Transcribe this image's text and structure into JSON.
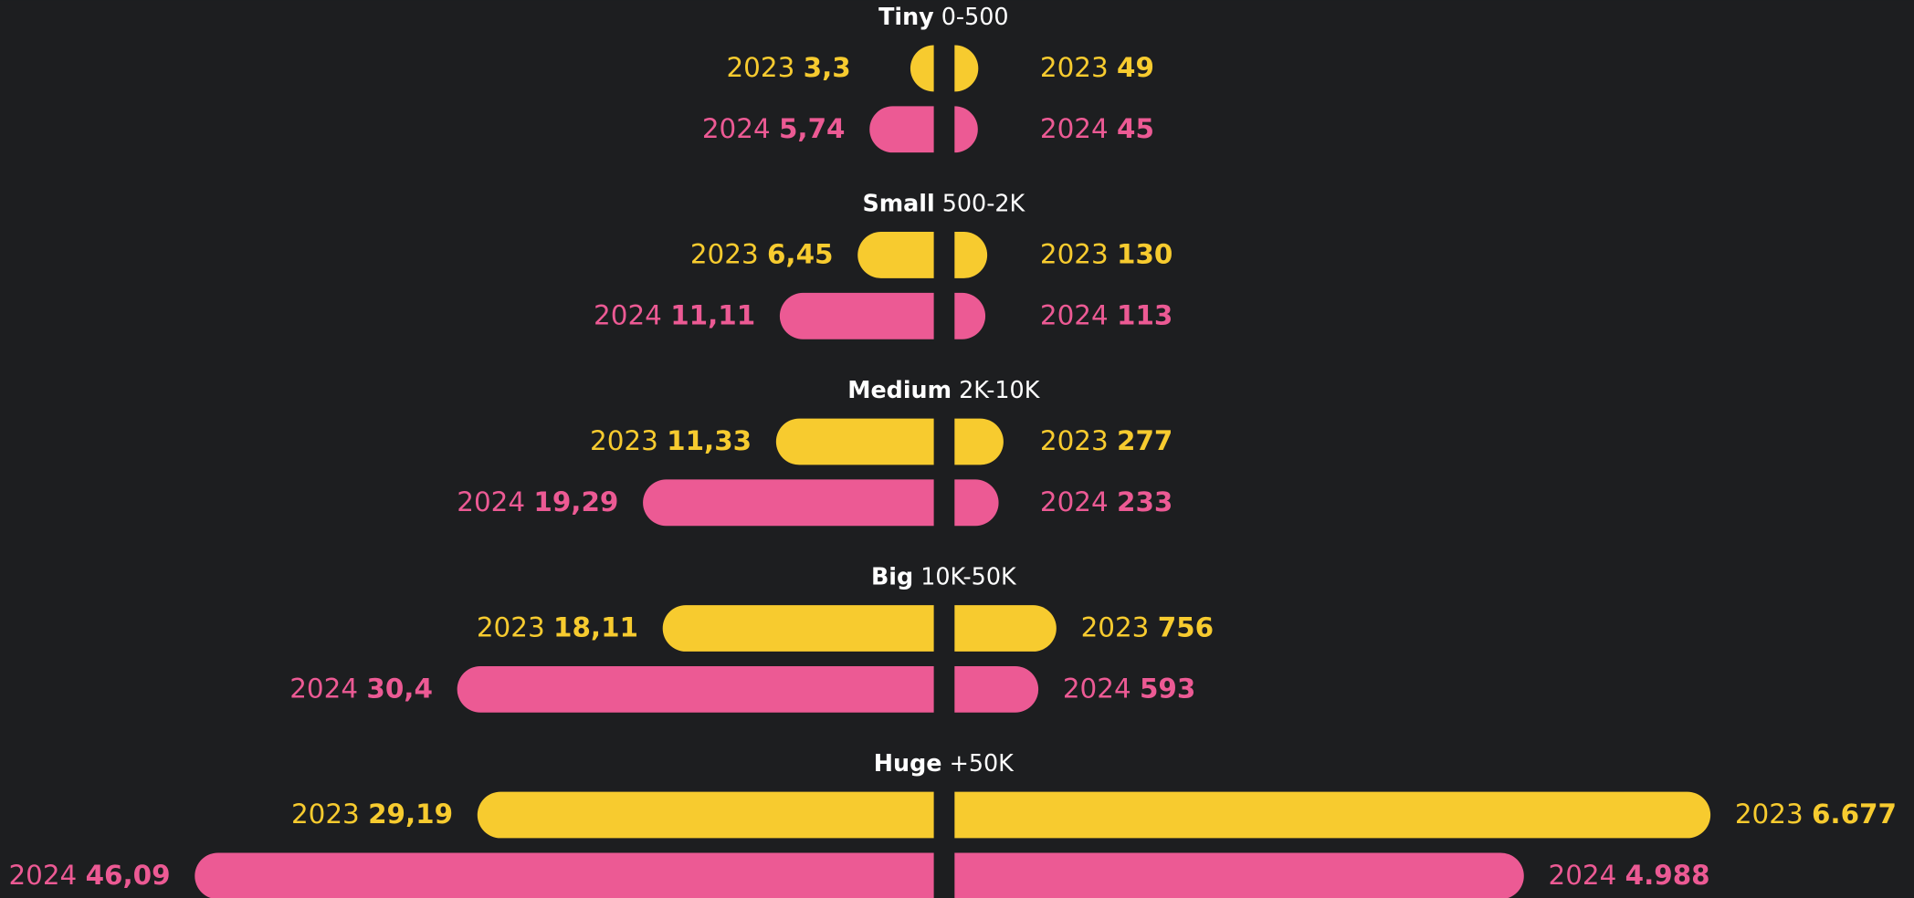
{
  "chart_data": {
    "type": "butterfly",
    "categories": [
      "Tiny",
      "Small",
      "Medium",
      "Big",
      "Huge"
    ],
    "category_ranges": [
      "0-500",
      "500-2K",
      "2K-10K",
      "10K-50K",
      "+50K"
    ],
    "series": [
      {
        "name": "2023",
        "side": "left",
        "color": "#f7cb2f",
        "values": [
          3.3,
          6.45,
          11.33,
          18.11,
          29.19
        ],
        "value_labels": [
          "3,3",
          "6,45",
          "11,33",
          "18,11",
          "29,19"
        ]
      },
      {
        "name": "2024",
        "side": "left",
        "color": "#ec5a94",
        "values": [
          5.74,
          11.11,
          19.29,
          30.4,
          46.09
        ],
        "value_labels": [
          "5,74",
          "11,11",
          "19,29",
          "30,4",
          "46,09"
        ]
      },
      {
        "name": "2023",
        "side": "right",
        "color": "#f7cb2f",
        "values": [
          49,
          130,
          277,
          756,
          6677
        ],
        "value_labels": [
          "49",
          "130",
          "277",
          "756",
          "6.677"
        ]
      },
      {
        "name": "2024",
        "side": "right",
        "color": "#ec5a94",
        "values": [
          45,
          113,
          233,
          593,
          4988
        ],
        "value_labels": [
          "45",
          "113",
          "233",
          "593",
          "4.988"
        ]
      }
    ]
  }
}
